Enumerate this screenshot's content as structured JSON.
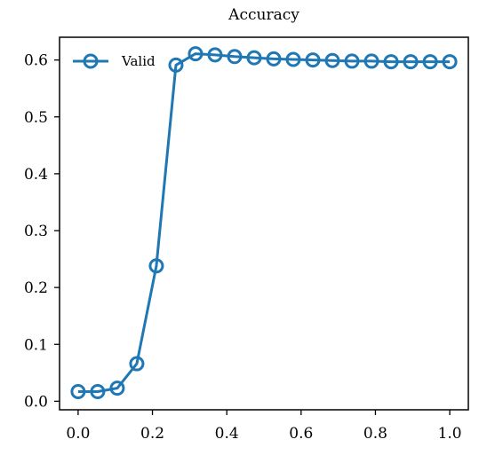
{
  "chart_data": {
    "type": "line",
    "title": "Accuracy",
    "xlabel": "",
    "ylabel": "",
    "xlim": [
      -0.05,
      1.05
    ],
    "ylim": [
      -0.015,
      0.64
    ],
    "xticks": [
      "0.0",
      "0.2",
      "0.4",
      "0.6",
      "0.8",
      "1.0"
    ],
    "yticks": [
      "0.0",
      "0.1",
      "0.2",
      "0.3",
      "0.4",
      "0.5",
      "0.6"
    ],
    "grid": false,
    "legend_position": "top-left",
    "series": [
      {
        "name": "Valid",
        "color": "#1f77b4",
        "marker": "hollow-circle",
        "x": [
          0.0,
          0.0526,
          0.1053,
          0.1579,
          0.2105,
          0.2632,
          0.3158,
          0.3684,
          0.4211,
          0.4737,
          0.5263,
          0.5789,
          0.6316,
          0.6842,
          0.7368,
          0.7895,
          0.8421,
          0.8947,
          0.9474,
          1.0
        ],
        "y": [
          0.017,
          0.017,
          0.023,
          0.066,
          0.238,
          0.591,
          0.611,
          0.609,
          0.606,
          0.604,
          0.602,
          0.601,
          0.6,
          0.599,
          0.598,
          0.598,
          0.597,
          0.597,
          0.597,
          0.597
        ]
      }
    ]
  }
}
